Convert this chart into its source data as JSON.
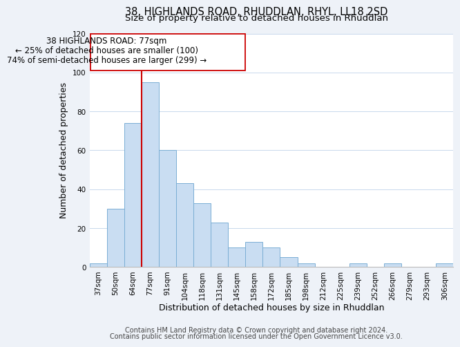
{
  "title": "38, HIGHLANDS ROAD, RHUDDLAN, RHYL, LL18 2SD",
  "subtitle": "Size of property relative to detached houses in Rhuddlan",
  "xlabel": "Distribution of detached houses by size in Rhuddlan",
  "ylabel": "Number of detached properties",
  "categories": [
    "37sqm",
    "50sqm",
    "64sqm",
    "77sqm",
    "91sqm",
    "104sqm",
    "118sqm",
    "131sqm",
    "145sqm",
    "158sqm",
    "172sqm",
    "185sqm",
    "198sqm",
    "212sqm",
    "225sqm",
    "239sqm",
    "252sqm",
    "266sqm",
    "279sqm",
    "293sqm",
    "306sqm"
  ],
  "values": [
    2,
    30,
    74,
    95,
    60,
    43,
    33,
    23,
    10,
    13,
    10,
    5,
    2,
    0,
    0,
    2,
    0,
    2,
    0,
    0,
    2
  ],
  "bar_color": "#c9ddf2",
  "bar_edge_color": "#7aaed4",
  "highlight_line_index": 3,
  "highlight_line_color": "#cc0000",
  "annotation_line1": "38 HIGHLANDS ROAD: 77sqm",
  "annotation_line2": "← 25% of detached houses are smaller (100)",
  "annotation_line3": "74% of semi-detached houses are larger (299) →",
  "ylim": [
    0,
    120
  ],
  "yticks": [
    0,
    20,
    40,
    60,
    80,
    100,
    120
  ],
  "footer_line1": "Contains HM Land Registry data © Crown copyright and database right 2024.",
  "footer_line2": "Contains public sector information licensed under the Open Government Licence v3.0.",
  "bg_color": "#eef2f8",
  "plot_bg_color": "#ffffff",
  "title_fontsize": 10.5,
  "subtitle_fontsize": 9.5,
  "axis_label_fontsize": 9,
  "tick_fontsize": 7.5,
  "annotation_fontsize": 8.5,
  "footer_fontsize": 7
}
